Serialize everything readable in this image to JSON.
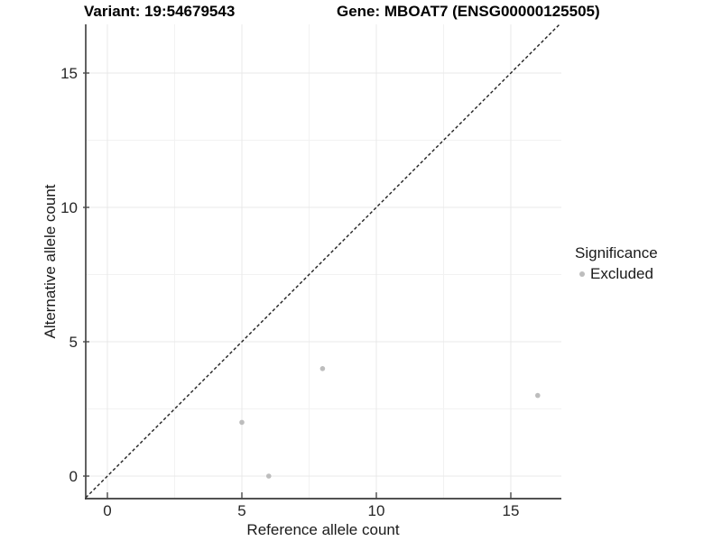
{
  "header": {
    "variant_title": "Variant: 19:54679543",
    "gene_title": "Gene: MBOAT7 (ENSG00000125505)"
  },
  "legend": {
    "title": "Significance",
    "items": [
      {
        "label": "Excluded",
        "color": "#bdbdbd"
      }
    ]
  },
  "chart_data": {
    "type": "scatter",
    "title": "Variant: 19:54679543  |  Gene: MBOAT7 (ENSG00000125505)",
    "xlabel": "Reference allele count",
    "ylabel": "Alternative allele count",
    "xlim": [
      -0.8,
      16.9
    ],
    "ylim": [
      -0.85,
      16.8
    ],
    "x_ticks": [
      0,
      5,
      10,
      15
    ],
    "y_ticks": [
      0,
      5,
      10,
      15
    ],
    "x_minor_ticks": [
      2.5,
      7.5,
      12.5
    ],
    "y_minor_ticks": [
      2.5,
      7.5,
      12.5
    ],
    "grid": true,
    "legend_position": "right",
    "series": [
      {
        "name": "Excluded",
        "color": "#bdbdbd",
        "points": [
          [
            5,
            2
          ],
          [
            6,
            0
          ],
          [
            8,
            4
          ],
          [
            16,
            3
          ]
        ]
      }
    ],
    "reference_line": {
      "kind": "identity y=x",
      "style": "dashed",
      "color": "#1f1f1f"
    },
    "colors": {
      "grid_major": "#e8e8e8",
      "grid_minor": "#f2f2f2",
      "axis_line": "#3a3a3a",
      "tick_mark": "#4a4a4a",
      "point": "#bdbdbd",
      "background": "#ffffff"
    }
  }
}
